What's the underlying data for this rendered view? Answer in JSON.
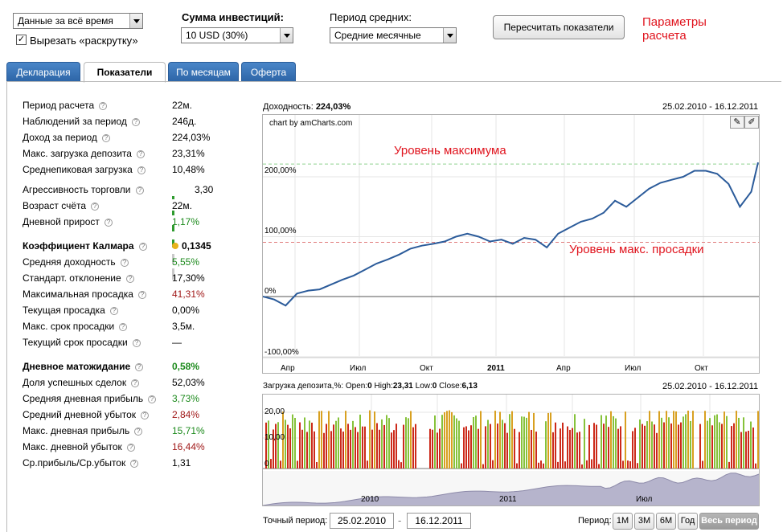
{
  "top": {
    "range_select": "Данные за всё время",
    "cut_checkbox_label": "Вырезать «раскрутку»",
    "invest_label": "Сумма инвестиций:",
    "invest_select": "10 USD (30%)",
    "avg_label": "Период средних:",
    "avg_select": "Средние месячные",
    "recalc_button": "Пересчитать показатели",
    "note_params": "Параметры\nрасчета"
  },
  "tabs": [
    "Декларация",
    "Показатели",
    "По месяцам",
    "Оферта"
  ],
  "metrics": [
    {
      "name": "Период расчета",
      "value": "22м."
    },
    {
      "name": "Наблюдений за период",
      "value": "246д."
    },
    {
      "name": "Доход за период",
      "value": "224,03%"
    },
    {
      "name": "Макс. загрузка депозита",
      "value": "23,31%"
    },
    {
      "name": "Среднепиковая загрузка",
      "value": "10,48%"
    },
    {
      "name": "Агрессивность торговли",
      "value": "3,30"
    },
    {
      "name": "Возраст счёта",
      "value": "22м."
    },
    {
      "name": "Дневной прирост",
      "value": "1,17%"
    },
    {
      "name": "Коэффициент Калмара",
      "value": "0,1345"
    },
    {
      "name": "Средняя доходность",
      "value": "5,55%"
    },
    {
      "name": "Стандарт. отклонение",
      "value": "17,30%"
    },
    {
      "name": "Максимальная просадка",
      "value": "41,31%"
    },
    {
      "name": "Текущая просадка",
      "value": "0,00%"
    },
    {
      "name": "Макс. срок просадки",
      "value": "3,5м."
    },
    {
      "name": "Текущий срок просадки",
      "value": "—"
    },
    {
      "name": "Дневное матожидание",
      "value": "0,58%"
    },
    {
      "name": "Доля успешных сделок",
      "value": "52,03%"
    },
    {
      "name": "Средняя дневная прибыль",
      "value": "3,73%"
    },
    {
      "name": "Средний дневной убыток",
      "value": "2,84%"
    },
    {
      "name": "Макс. дневная прибыль",
      "value": "15,71%"
    },
    {
      "name": "Макс. дневной убыток",
      "value": "16,44%"
    },
    {
      "name": "Ср.прибыль/Ср.убыток",
      "value": "1,31"
    }
  ],
  "chart_data": [
    {
      "type": "line",
      "title_prefix": "Доходность: ",
      "title_value": "224,03%",
      "date_range": "25.02.2010 - 16.12.2011",
      "credit": "chart by amCharts.com",
      "y_ticks": [
        "200,00%",
        "100,00%",
        "0%",
        "-100,00%"
      ],
      "x_ticks": [
        "Апр",
        "Июл",
        "Окт",
        "2011",
        "Апр",
        "Июл",
        "Окт"
      ],
      "ylim": [
        -100,
        230
      ],
      "annotations": [
        "Уровень максимума",
        "Уровень макс. просадки"
      ],
      "levels": {
        "max": 224,
        "max_drawdown": 92
      },
      "x_months": [
        0,
        0.5,
        1,
        1.5,
        2,
        2.5,
        3,
        3.5,
        4,
        4.5,
        5,
        5.5,
        6,
        6.5,
        7,
        7.5,
        8,
        8.5,
        9,
        9.5,
        10,
        10.5,
        11,
        11.5,
        12,
        12.5,
        13,
        13.5,
        14,
        14.5,
        15,
        15.5,
        16,
        16.5,
        17,
        17.5,
        18,
        18.5,
        19,
        19.5,
        20,
        20.5,
        21,
        21.5,
        21.8
      ],
      "values": [
        0,
        -5,
        -15,
        5,
        10,
        12,
        20,
        28,
        35,
        45,
        55,
        62,
        70,
        80,
        85,
        88,
        92,
        100,
        105,
        100,
        92,
        95,
        88,
        98,
        95,
        82,
        105,
        115,
        125,
        130,
        140,
        160,
        150,
        165,
        180,
        190,
        195,
        200,
        210,
        210,
        205,
        188,
        150,
        175,
        224
      ]
    },
    {
      "type": "bar",
      "title_prefix": "Загрузка депозита,%: Open:",
      "open": "0",
      "high_label": " High:",
      "high": "23,31",
      "low_label": " Low:",
      "low": "0",
      "close_label": " Close:",
      "close": "6,13",
      "date_range": "25.02.2010 - 16.12.2011",
      "y_ticks": [
        "20,00",
        "10,00",
        "0"
      ],
      "nav_ticks": [
        "2010",
        "2011",
        "Июл"
      ],
      "ylim": [
        0,
        23.31
      ]
    }
  ],
  "period": {
    "exact_label": "Точный период:",
    "from": "25.02.2010",
    "to": "16.12.2011",
    "label": "Период:",
    "buttons": [
      "1М",
      "3М",
      "6М",
      "Год",
      "Весь период"
    ]
  },
  "colors": {
    "line": "#2b5b9a",
    "max_level": "#8fd18f",
    "dd_level": "#e07a7a",
    "note": "#e0141e"
  }
}
